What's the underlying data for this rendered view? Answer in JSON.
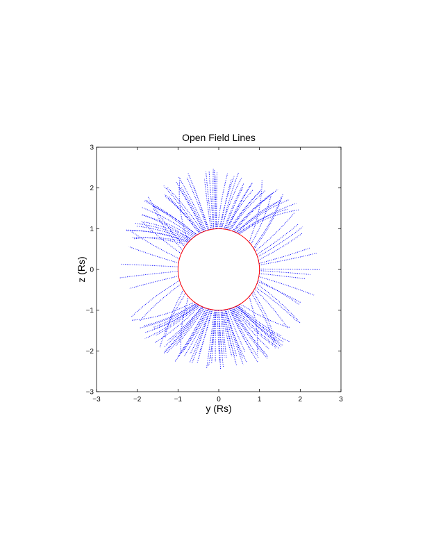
{
  "chart_data": {
    "type": "line",
    "title": "Open Field Lines",
    "xlabel": "y (Rs)",
    "ylabel": "z (Rs)",
    "xlim": [
      -3,
      3
    ],
    "ylim": [
      -3,
      3
    ],
    "xticks": [
      -3,
      -2,
      -1,
      0,
      1,
      2,
      3
    ],
    "yticks": [
      -3,
      -2,
      -1,
      0,
      1,
      2,
      3
    ],
    "grid": false,
    "legend": "none",
    "colors": {
      "field_lines": "#0000ff",
      "sun": "#ff0000",
      "axes": "#000000"
    },
    "sun_circle": {
      "center": [
        0,
        0
      ],
      "radius": 1.0
    },
    "field_line_style": "dotted",
    "field_line_groups": [
      {
        "region": "north",
        "footpoint_angle_range_deg": [
          60,
          140
        ],
        "line_count": 55,
        "start_radius": 1.0,
        "end_radius": 2.5
      },
      {
        "region": "south",
        "footpoint_angle_range_deg": [
          -125,
          -60
        ],
        "line_count": 60,
        "start_radius": 1.0,
        "end_radius": 2.5
      },
      {
        "region": "east",
        "footpoint_angle_range_deg": [
          -40,
          40
        ],
        "line_count": 22,
        "start_radius": 1.0,
        "end_radius": 2.5
      },
      {
        "region": "west",
        "footpoint_angle_range_deg": [
          140,
          220
        ],
        "line_count": 14,
        "start_radius": 1.0,
        "end_radius": 2.5
      }
    ]
  }
}
